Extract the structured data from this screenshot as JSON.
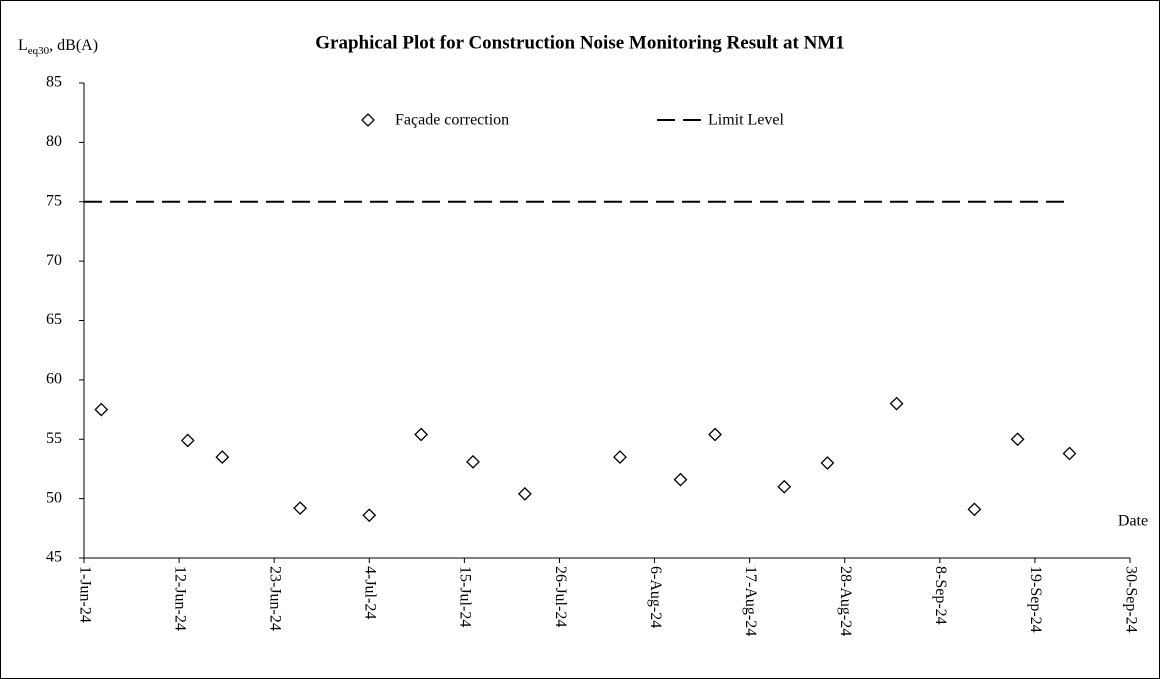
{
  "chart_data": {
    "type": "scatter",
    "title": "Graphical Plot for Construction Noise Monitoring Result at NM1",
    "y_label": {
      "main": "L",
      "sub": "eq30",
      "rest": ", dB(A)"
    },
    "x_label": "Date",
    "series": [
      {
        "name": "Façade correction",
        "kind": "marker",
        "color": "#000000",
        "x": [
          "3-Jun-24",
          "13-Jun-24",
          "17-Jun-24",
          "26-Jun-24",
          "4-Jul-24",
          "10-Jul-24",
          "16-Jul-24",
          "22-Jul-24",
          "2-Aug-24",
          "9-Aug-24",
          "13-Aug-24",
          "21-Aug-24",
          "26-Aug-24",
          "3-Sep-24",
          "12-Sep-24",
          "17-Sep-24",
          "23-Sep-24"
        ],
        "values": [
          57.5,
          54.9,
          53.5,
          49.2,
          48.6,
          55.4,
          53.1,
          50.4,
          53.5,
          51.6,
          55.4,
          51.0,
          53.0,
          58.0,
          49.1,
          55.0,
          53.8
        ]
      },
      {
        "name": "Limit Level",
        "kind": "dashed-line",
        "color": "#000000",
        "x": [
          "1-Jun-24",
          "23-Sep-24"
        ],
        "values": [
          75,
          75
        ]
      }
    ],
    "xlim": [
      "1-Jun-24",
      "30-Sep-24"
    ],
    "xticks": [
      "1-Jun-24",
      "12-Jun-24",
      "23-Jun-24",
      "4-Jul-24",
      "15-Jul-24",
      "26-Jul-24",
      "6-Aug-24",
      "17-Aug-24",
      "28-Aug-24",
      "8-Sep-24",
      "19-Sep-24",
      "30-Sep-24"
    ],
    "ylim": [
      45,
      85
    ],
    "yticks": [
      45,
      50,
      55,
      60,
      65,
      70,
      75,
      80,
      85
    ],
    "grid": false,
    "legend": "top"
  }
}
